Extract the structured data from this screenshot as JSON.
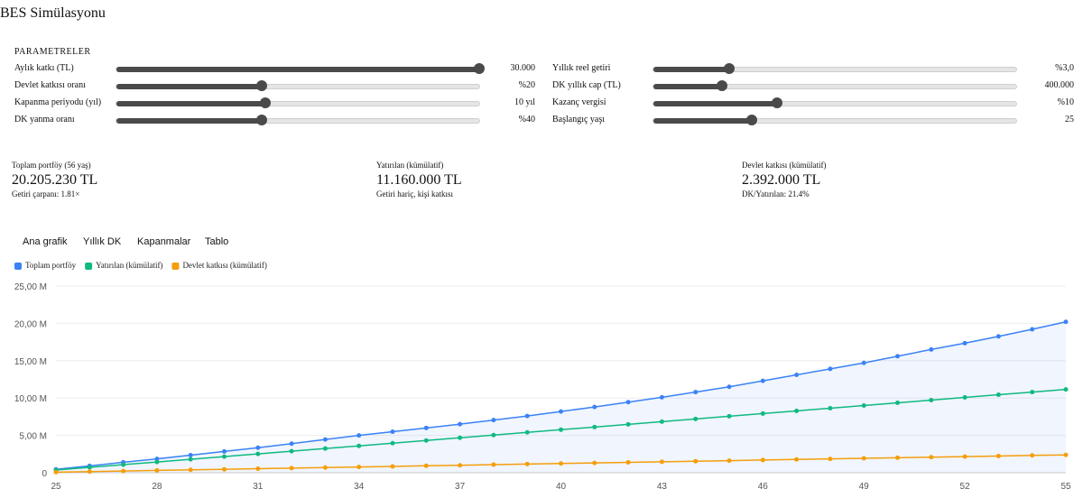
{
  "header": {
    "title": "BES Simülasyonu"
  },
  "params": {
    "title": "PARAMETRELER",
    "items": [
      {
        "label": "Aylık katkı (TL)",
        "value": "30.000"
      },
      {
        "label": "Devlet katkısı oranı",
        "value": "%20"
      },
      {
        "label": "Kapanma periyodu (yıl)",
        "value": "10 yıl"
      },
      {
        "label": "DK yanma oranı",
        "value": "%40"
      },
      {
        "label": "Yıllık reel getiri",
        "value": "%3,0"
      },
      {
        "label": "DK yıllık cap (TL)",
        "value": "400.000"
      },
      {
        "label": "Kazanç vergisi",
        "value": "%10"
      },
      {
        "label": "Başlangıç yaşı",
        "value": "25"
      }
    ]
  },
  "summary": [
    {
      "label": "Toplam portföy (56 yaş)",
      "value": "20.205.230 TL",
      "note": "Getiri çarpanı: 1.81×"
    },
    {
      "label": "Yatırılan (kümülatif)",
      "value": "11.160.000 TL",
      "note": "Getiri hariç, kişi katkısı"
    },
    {
      "label": "Devlet katkısı (kümülatif)",
      "value": "2.392.000 TL",
      "note": "DK/Yatırılan: 21.4%"
    }
  ],
  "tabs": [
    "Ana grafik",
    "Yıllık DK",
    "Kapanmalar",
    "Tablo"
  ],
  "chart_data": {
    "type": "line",
    "x": [
      25,
      26,
      27,
      28,
      29,
      30,
      31,
      32,
      33,
      34,
      35,
      36,
      37,
      38,
      39,
      40,
      41,
      42,
      43,
      44,
      45,
      46,
      47,
      48,
      49,
      50,
      51,
      52,
      53,
      54,
      55
    ],
    "xlim": [
      25,
      55
    ],
    "xticks": [
      25,
      28,
      31,
      34,
      37,
      40,
      43,
      46,
      49,
      52,
      55
    ],
    "ylim": [
      0,
      25
    ],
    "yticks": [
      {
        "value": 0,
        "label": "0"
      },
      {
        "value": 5,
        "label": "5,00 M"
      },
      {
        "value": 10,
        "label": "10,00 M"
      },
      {
        "value": 15,
        "label": "15,00 M"
      },
      {
        "value": 20,
        "label": "20,00 M"
      },
      {
        "value": 25,
        "label": "25,00 M"
      }
    ],
    "grid": true,
    "series": [
      {
        "name": "Toplam portföy",
        "color": "#3b82f6",
        "fill": true,
        "values": [
          0.45,
          0.92,
          1.4,
          1.85,
          2.35,
          2.85,
          3.35,
          3.9,
          4.45,
          5.0,
          5.5,
          6.0,
          6.5,
          7.05,
          7.6,
          8.2,
          8.8,
          9.45,
          10.1,
          10.8,
          11.5,
          12.3,
          13.1,
          13.9,
          14.7,
          15.6,
          16.5,
          17.35,
          18.25,
          19.2,
          20.2
        ]
      },
      {
        "name": "Yatırılan (kümülatif)",
        "color": "#10b981",
        "fill": false,
        "values": [
          0.36,
          0.72,
          1.08,
          1.44,
          1.8,
          2.16,
          2.52,
          2.88,
          3.24,
          3.6,
          3.96,
          4.32,
          4.68,
          5.04,
          5.4,
          5.76,
          6.12,
          6.48,
          6.84,
          7.2,
          7.56,
          7.92,
          8.28,
          8.64,
          9.0,
          9.36,
          9.72,
          10.08,
          10.44,
          10.8,
          11.16
        ]
      },
      {
        "name": "Devlet katkısı (kümülatif)",
        "color": "#f59e0b",
        "fill": false,
        "values": [
          0.08,
          0.15,
          0.23,
          0.31,
          0.39,
          0.46,
          0.54,
          0.62,
          0.69,
          0.77,
          0.85,
          0.93,
          1.0,
          1.08,
          1.16,
          1.24,
          1.31,
          1.39,
          1.47,
          1.54,
          1.62,
          1.7,
          1.78,
          1.85,
          1.93,
          2.01,
          2.08,
          2.16,
          2.24,
          2.32,
          2.39
        ]
      }
    ]
  }
}
